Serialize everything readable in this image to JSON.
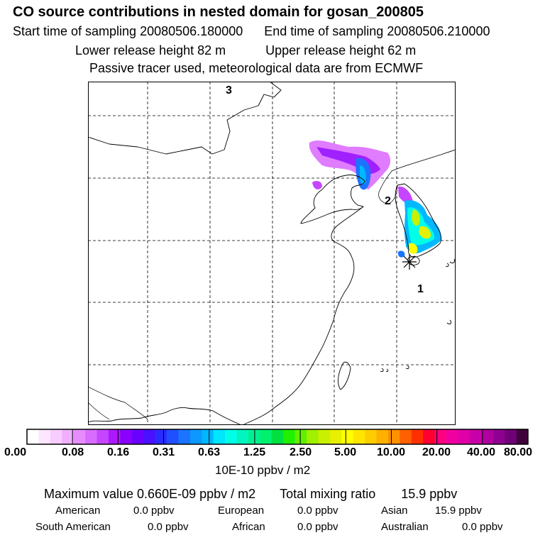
{
  "header": {
    "title": "CO  source contributions in nested domain for gosan_200805",
    "start_time": "Start time of sampling 20080506.180000",
    "end_time": "End time of sampling 20080506.210000",
    "lower_height": "Lower release height   82 m",
    "upper_height": "Upper release height   62 m",
    "tracer_note": "Passive tracer used, meteorological data are from ECMWF"
  },
  "map": {
    "markers": [
      {
        "id": "1",
        "label": "1"
      },
      {
        "id": "2",
        "label": "2"
      },
      {
        "id": "3",
        "label": "3"
      }
    ],
    "receptor": "receptor-star"
  },
  "colorbar": {
    "ticks": [
      "0.00",
      "0.08",
      "0.16",
      "0.31",
      "0.63",
      "1.25",
      "2.50",
      "5.00",
      "10.00",
      "20.00",
      "40.00",
      "80.00"
    ],
    "units": "10E-10 ppbv / m2",
    "colors": [
      "#ffffff",
      "#fde6ff",
      "#f8ccff",
      "#f0b0ff",
      "#e68cff",
      "#d86cff",
      "#c646ff",
      "#ad19ff",
      "#8a00ff",
      "#6a00ff",
      "#4a10ff",
      "#2a2cff",
      "#1e50ff",
      "#1a74ff",
      "#0c98ff",
      "#00b8ff",
      "#00e6ff",
      "#00ffe6",
      "#00f5c0",
      "#00f090",
      "#00f070",
      "#00e040",
      "#20f000",
      "#60f000",
      "#a0f000",
      "#c8f000",
      "#e6f000",
      "#ffff00",
      "#ffe600",
      "#ffcc00",
      "#ffb000",
      "#ff9000",
      "#ff6000",
      "#ff3000",
      "#ff0030",
      "#ff0080",
      "#f000a0",
      "#e000a8",
      "#c800a8",
      "#b000a0",
      "#900090",
      "#700078",
      "#40003c"
    ]
  },
  "summary": {
    "max_label": "Maximum value  0.660E-09 ppbv / m2",
    "total_label": "Total mixing ratio",
    "total_value": "15.9 ppbv",
    "regions": [
      {
        "name": "American",
        "value": "0.0 ppbv"
      },
      {
        "name": "European",
        "value": "0.0 ppbv"
      },
      {
        "name": "Asian",
        "value": "15.9 ppbv"
      },
      {
        "name": "South American",
        "value": "0.0 ppbv"
      },
      {
        "name": "African",
        "value": "0.0 ppbv"
      },
      {
        "name": "Australian",
        "value": "0.0 ppbv"
      }
    ]
  }
}
